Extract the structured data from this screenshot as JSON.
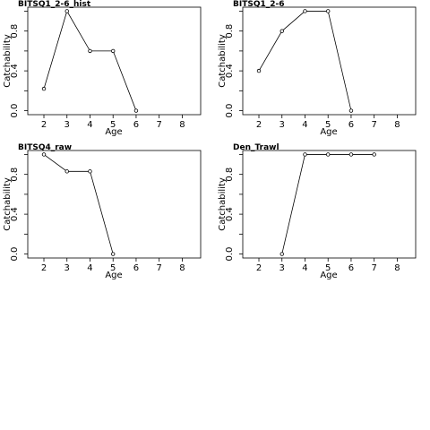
{
  "chart_data": [
    {
      "type": "line",
      "title": "BITSQ1_2-6_hist",
      "xlabel": "Age",
      "ylabel": "Catchability",
      "x": [
        2,
        3,
        4,
        5,
        6
      ],
      "y": [
        0.22,
        1.0,
        0.6,
        0.6,
        0.0
      ],
      "xlim": [
        1.3,
        8.8
      ],
      "ylim": [
        -0.04,
        1.04
      ],
      "xticks": [
        2,
        3,
        4,
        5,
        6,
        7,
        8
      ],
      "yticks": [
        0.0,
        0.4,
        0.8
      ],
      "ytick_labels": [
        "0.0",
        "0.4",
        "0.8"
      ],
      "grid": false
    },
    {
      "type": "line",
      "title": "BITSQ1_2-6",
      "xlabel": "Age",
      "ylabel": "Catchability",
      "x": [
        2,
        3,
        4,
        5,
        6
      ],
      "y": [
        0.4,
        0.8,
        1.0,
        1.0,
        0.0
      ],
      "xlim": [
        1.3,
        8.8
      ],
      "ylim": [
        -0.04,
        1.04
      ],
      "xticks": [
        2,
        3,
        4,
        5,
        6,
        7,
        8
      ],
      "yticks": [
        0.0,
        0.4,
        0.8
      ],
      "ytick_labels": [
        "0.0",
        "0.4",
        "0.8"
      ],
      "grid": false
    },
    {
      "type": "line",
      "title": "BITSQ4_raw",
      "xlabel": "Age",
      "ylabel": "Catchability",
      "x": [
        2,
        3,
        4,
        5
      ],
      "y": [
        1.0,
        0.83,
        0.83,
        0.0
      ],
      "xlim": [
        1.3,
        8.8
      ],
      "ylim": [
        -0.04,
        1.04
      ],
      "xticks": [
        2,
        3,
        4,
        5,
        6,
        7,
        8
      ],
      "yticks": [
        0.0,
        0.4,
        0.8
      ],
      "ytick_labels": [
        "0.0",
        "0.4",
        "0.8"
      ],
      "grid": false
    },
    {
      "type": "line",
      "title": "Den_Trawl",
      "xlabel": "Age",
      "ylabel": "Catchability",
      "x": [
        3,
        4,
        5,
        6,
        7
      ],
      "y": [
        0.0,
        1.0,
        1.0,
        1.0,
        1.0
      ],
      "xlim": [
        1.3,
        8.8
      ],
      "ylim": [
        -0.04,
        1.04
      ],
      "xticks": [
        2,
        3,
        4,
        5,
        6,
        7,
        8
      ],
      "yticks": [
        0.0,
        0.4,
        0.8
      ],
      "ytick_labels": [
        "0.0",
        "0.4",
        "0.8"
      ],
      "grid": false
    }
  ]
}
